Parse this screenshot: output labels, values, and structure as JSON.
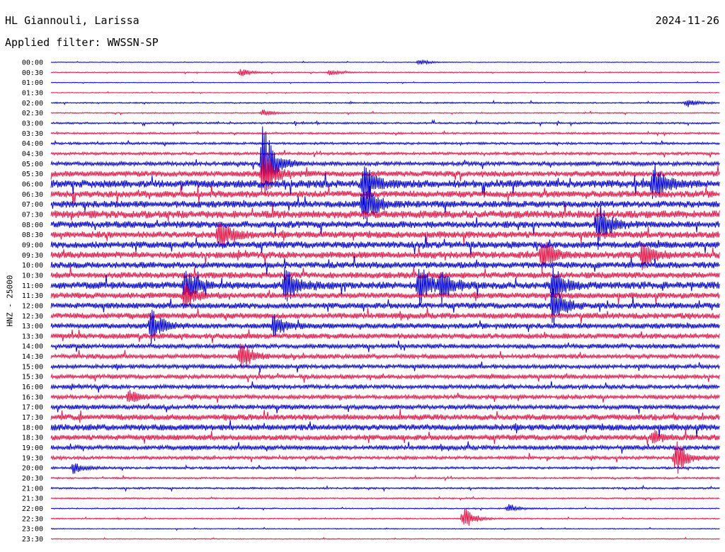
{
  "header": {
    "station": "HL Giannouli, Larissa",
    "date": "2024-11-26",
    "filter": "Applied filter: WWSSN-SP"
  },
  "chart_data": {
    "type": "line",
    "title": "HL Giannouli, Larissa",
    "date": "2024-11-26",
    "filter": "Applied filter: WWSSN-SP",
    "ylabel": "HNZ - 25000",
    "row_labels": [
      "00:00",
      "00:30",
      "01:00",
      "01:30",
      "02:00",
      "02:30",
      "03:00",
      "03:30",
      "04:00",
      "04:30",
      "05:00",
      "05:30",
      "06:00",
      "06:30",
      "07:00",
      "07:30",
      "08:00",
      "08:30",
      "09:00",
      "09:30",
      "10:00",
      "10:30",
      "11:00",
      "11:30",
      "12:00",
      "12:30",
      "13:00",
      "13:30",
      "14:00",
      "14:30",
      "15:00",
      "15:30",
      "16:00",
      "16:30",
      "17:00",
      "17:30",
      "18:00",
      "18:30",
      "19:00",
      "19:30",
      "20:00",
      "20:30",
      "21:00",
      "21:30",
      "22:00",
      "22:30",
      "23:00",
      "23:30"
    ],
    "colors": [
      "#0000dd",
      "#ee1144"
    ],
    "minutes_per_row": 30,
    "noise_level": [
      0.3,
      0.4,
      0.3,
      0.3,
      0.6,
      0.5,
      0.8,
      0.8,
      1.0,
      1.2,
      1.8,
      2.5,
      3.5,
      3.0,
      3.0,
      3.5,
      3.0,
      3.0,
      3.0,
      3.0,
      2.8,
      2.8,
      3.2,
      2.6,
      2.6,
      2.6,
      2.4,
      2.4,
      2.0,
      2.0,
      1.8,
      1.8,
      1.8,
      1.8,
      2.0,
      2.6,
      2.8,
      2.4,
      2.0,
      1.4,
      1.0,
      0.8,
      0.8,
      0.6,
      0.5,
      0.5,
      0.4,
      0.4
    ],
    "events": [
      {
        "row": 10,
        "minute": 9.5,
        "amp": 60
      },
      {
        "row": 11,
        "minute": 9.5,
        "amp": 40
      },
      {
        "row": 12,
        "minute": 14,
        "amp": 30
      },
      {
        "row": 14,
        "minute": 14,
        "amp": 35
      },
      {
        "row": 12,
        "minute": 27,
        "amp": 28
      },
      {
        "row": 16,
        "minute": 24.5,
        "amp": 35
      },
      {
        "row": 17,
        "minute": 7.5,
        "amp": 30
      },
      {
        "row": 19,
        "minute": 22,
        "amp": 26
      },
      {
        "row": 19,
        "minute": 26.5,
        "amp": 22
      },
      {
        "row": 22,
        "minute": 6,
        "amp": 30
      },
      {
        "row": 22,
        "minute": 10.5,
        "amp": 32
      },
      {
        "row": 22,
        "minute": 16.5,
        "amp": 30
      },
      {
        "row": 22,
        "minute": 17.5,
        "amp": 24
      },
      {
        "row": 22,
        "minute": 22.5,
        "amp": 28
      },
      {
        "row": 23,
        "minute": 6,
        "amp": 22
      },
      {
        "row": 24,
        "minute": 22.5,
        "amp": 30
      },
      {
        "row": 26,
        "minute": 4.5,
        "amp": 26
      },
      {
        "row": 26,
        "minute": 10,
        "amp": 18
      },
      {
        "row": 29,
        "minute": 8.5,
        "amp": 24
      },
      {
        "row": 33,
        "minute": 3.5,
        "amp": 10
      },
      {
        "row": 37,
        "minute": 27,
        "amp": 10
      },
      {
        "row": 39,
        "minute": 28,
        "amp": 28
      },
      {
        "row": 40,
        "minute": 1,
        "amp": 8
      },
      {
        "row": 45,
        "minute": 18.5,
        "amp": 18
      },
      {
        "row": 0,
        "minute": 16.5,
        "amp": 4
      },
      {
        "row": 1,
        "minute": 8.5,
        "amp": 6
      },
      {
        "row": 1,
        "minute": 12.5,
        "amp": 4
      },
      {
        "row": 4,
        "minute": 28.5,
        "amp": 6
      },
      {
        "row": 5,
        "minute": 9.5,
        "amp": 5
      },
      {
        "row": 44,
        "minute": 20.5,
        "amp": 6
      }
    ]
  }
}
